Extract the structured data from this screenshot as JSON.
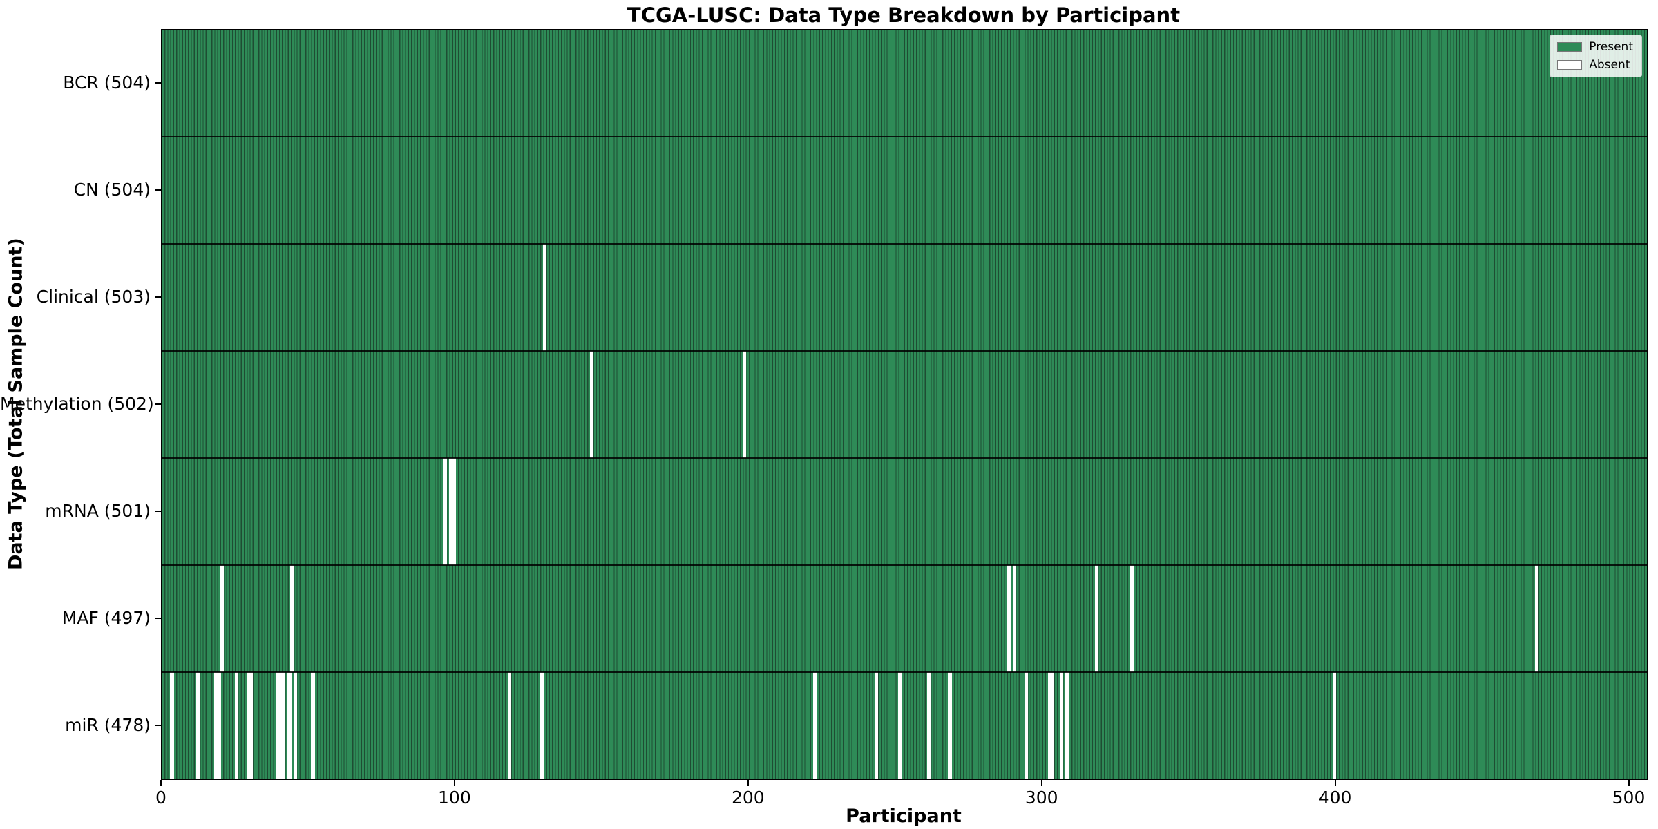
{
  "chart_data": {
    "type": "heatmap",
    "title": "TCGA-LUSC: Data Type Breakdown by Participant",
    "xlabel": "Participant",
    "ylabel": "Data Type (Total Sample Count)",
    "x_ticks": [
      0,
      100,
      200,
      300,
      400,
      500
    ],
    "x_axis_units": 506,
    "n_participants": 504,
    "grid": false,
    "legend_position": "upper right",
    "legend": [
      {
        "label": "Present",
        "color": "#2e8b57"
      },
      {
        "label": "Absent",
        "color": "#ffffff"
      }
    ],
    "colors": {
      "present": "#2e8b57",
      "absent": "#ffffff",
      "bar_edge": "#1e4d33",
      "row_separator": "#000000",
      "axis": "#000000"
    },
    "rows": [
      {
        "label": "BCR (504)",
        "data_type": "BCR",
        "total": 504,
        "absent_participants": []
      },
      {
        "label": "CN (504)",
        "data_type": "CN",
        "total": 504,
        "absent_participants": []
      },
      {
        "label": "Clinical (503)",
        "data_type": "Clinical",
        "total": 503,
        "absent_participants": [
          130
        ]
      },
      {
        "label": "Methylation (502)",
        "data_type": "Methylation",
        "total": 502,
        "absent_participants": [
          146,
          198
        ]
      },
      {
        "label": "mRNA (501)",
        "data_type": "mRNA",
        "total": 501,
        "absent_participants": [
          96,
          98,
          99
        ]
      },
      {
        "label": "MAF (497)",
        "data_type": "MAF",
        "total": 497,
        "absent_participants": [
          20,
          44,
          288,
          290,
          318,
          330,
          468
        ]
      },
      {
        "label": "miR (478)",
        "data_type": "miR",
        "total": 478,
        "absent_participants": [
          3,
          12,
          18,
          19,
          25,
          29,
          30,
          39,
          40,
          41,
          43,
          45,
          51,
          118,
          129,
          222,
          243,
          251,
          261,
          268,
          294,
          302,
          303,
          306,
          308,
          399
        ]
      }
    ]
  }
}
